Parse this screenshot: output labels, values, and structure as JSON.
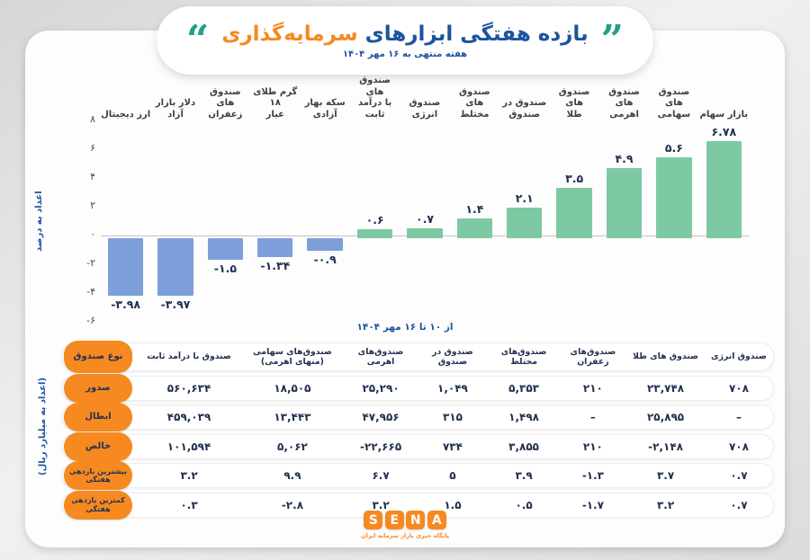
{
  "colors": {
    "brand_blue": "#1d53a0",
    "accent_orange": "#f6891f",
    "quote_teal": "#1fa18f",
    "bar_positive_green": "#7dc9a4",
    "bar_negative_blue": "#7d9fda",
    "value_text_navy": "#223150"
  },
  "header": {
    "title_blue": "بازده هفتگی ابزارهای",
    "title_orange": "سرمایه‌گذاری",
    "subtitle": "هفته منتهی به ۱۶ مهر ۱۴۰۴",
    "quote_right_glyph": "”",
    "quote_left_glyph": "“"
  },
  "chart_data": {
    "type": "bar",
    "title": "بازده هفتگی ابزارهای سرمایه‌گذاری",
    "subtitle": "هفته منتهی به ۱۶ مهر ۱۴۰۴",
    "ylabel": "اعداد به درصد",
    "ylim": [
      -6,
      8
    ],
    "grid": false,
    "yticks": [
      8,
      6,
      4,
      2,
      0,
      -2,
      -4,
      -6
    ],
    "ytick_labels": [
      "۸",
      "۶",
      "۴",
      "۲",
      "۰",
      "-۲",
      "-۴",
      "-۶"
    ],
    "categories": [
      "بازار سهام",
      "صندوق های سهامی",
      "صندوق های اهرمی",
      "صندوق های طلا",
      "صندوق در صندوق",
      "صندوق های مختلط",
      "صندوق انرژی",
      "صندوق های با درآمد ثابت",
      "سکه بهار آزادی",
      "گرم طلای ۱۸ عیار",
      "صندوق های زعفران",
      "دلار بازار آزاد",
      "ارز دیجیتال"
    ],
    "category_display": [
      "بازار سهام",
      "صندوق های\nسهامی",
      "صندوق های\nاهرمی",
      "صندوق های\nطلا",
      "صندوق در\nصندوق",
      "صندوق های\nمختلط",
      "صندوق انرژی",
      "صندوق های\nبا درآمد ثابت",
      "سکه بهار\nآزادی",
      "گرم طلای ۱۸\nعیار",
      "صندوق های\nزعفران",
      "دلار بازار آزاد",
      "ارز دیجیتال"
    ],
    "values": [
      6.78,
      5.6,
      4.9,
      3.5,
      2.1,
      1.4,
      0.7,
      0.6,
      -0.9,
      -1.34,
      -1.5,
      -3.97,
      -3.98
    ],
    "value_labels": [
      "۶.۷۸",
      "۵.۶",
      "۴.۹",
      "۳.۵",
      "۲.۱",
      "۱.۴",
      "۰.۷",
      "۰.۶",
      "-۰.۹",
      "-۱.۳۴",
      "-۱.۵",
      "-۳.۹۷",
      "-۳.۹۸"
    ],
    "positive_color": "#7dc9a4",
    "negative_color": "#7d9fda",
    "note_below": "از ۱۰ تا ۱۶ مهر ۱۴۰۴",
    "legend_position": "none"
  },
  "table": {
    "unit_label": "(اعداد به میلیارد ریال)",
    "corner_label": "نوع صندوق",
    "columns": [
      "صندوق با درآمد ثابت",
      "صندوق‌های سهامی\n(منهای اهرمی)",
      "صندوق‌های اهرمی",
      "صندوق در صندوق",
      "صندوق‌های مختلط",
      "صندوق‌های زعفران",
      "صندوق های طلا",
      "صندوق انرژی"
    ],
    "rows": [
      {
        "label": "صدور",
        "values": [
          "۵۶۰,۶۳۴",
          "۱۸,۵۰۵",
          "۲۵,۲۹۰",
          "۱,۰۴۹",
          "۵,۳۵۳",
          "۲۱۰",
          "۲۳,۷۴۸",
          "۷۰۸"
        ]
      },
      {
        "label": "ابطال",
        "values": [
          "۴۵۹,۰۳۹",
          "۱۳,۴۴۳",
          "۴۷,۹۵۶",
          "۳۱۵",
          "۱,۴۹۸",
          "–",
          "۲۵,۸۹۵",
          "–"
        ]
      },
      {
        "label": "خالص",
        "values": [
          "۱۰۱,۵۹۴",
          "۵,۰۶۲",
          "-۲۲,۶۶۵",
          "۷۳۴",
          "۳,۸۵۵",
          "۲۱۰",
          "-۲,۱۴۸",
          "۷۰۸"
        ]
      },
      {
        "label": "بیشترین بازدهی\nهفتگی",
        "values": [
          "۳.۲",
          "۹.۹",
          "۶.۷",
          "۵",
          "۳.۹",
          "-۱.۳",
          "۳.۷",
          "۰.۷"
        ]
      },
      {
        "label": "کمترین بازدهی\nهفتگی",
        "values": [
          "۰.۳",
          "-۲.۸",
          "۳.۲",
          "۱.۵",
          "۰.۵",
          "-۱.۷",
          "۳.۲",
          "۰.۷"
        ]
      }
    ]
  },
  "footer": {
    "logo_letters": [
      "S",
      "E",
      "N",
      "A"
    ],
    "tagline": "پایگاه خبری بازار سرمایه ایران"
  }
}
